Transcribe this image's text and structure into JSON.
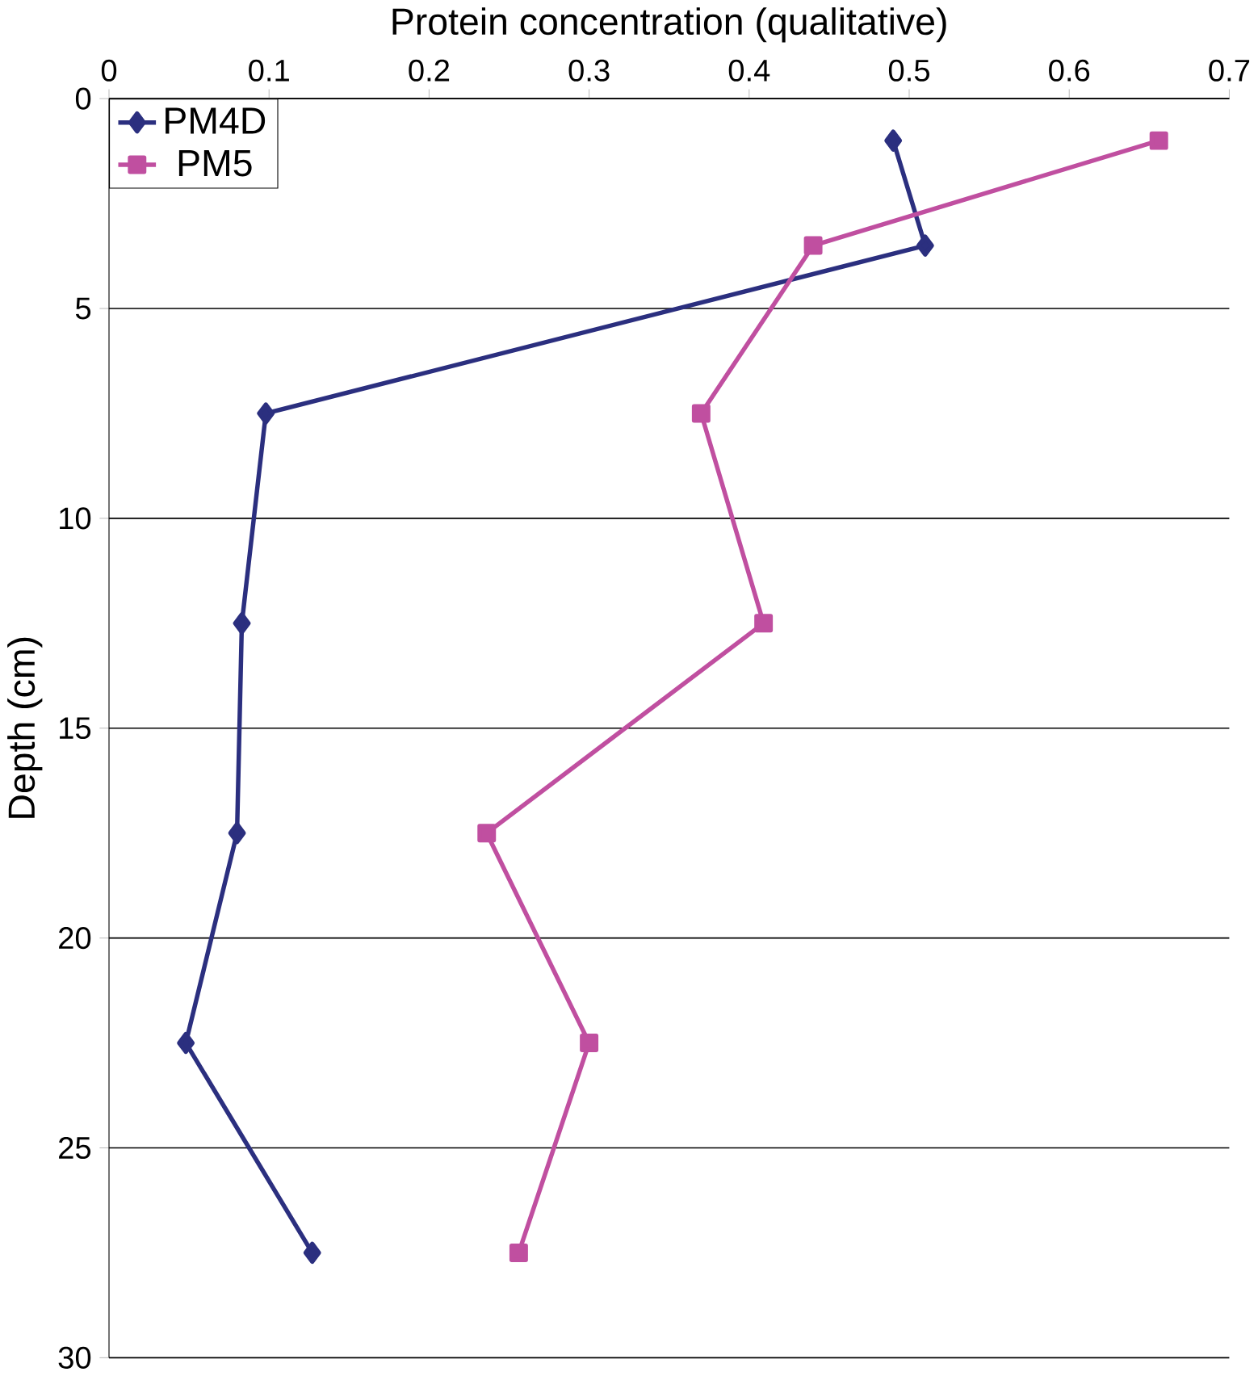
{
  "chart_data": {
    "type": "line",
    "xlabel": "Protein concentration (qualitative)",
    "ylabel": "Depth (cm)",
    "xlim": [
      0,
      0.7
    ],
    "xticks": [
      0,
      0.1,
      0.2,
      0.3,
      0.4,
      0.5,
      0.6,
      0.7
    ],
    "ylim": [
      30,
      0
    ],
    "yticks": [
      0,
      5,
      10,
      15,
      20,
      25,
      30
    ],
    "grid": "y",
    "legend": "top left",
    "line_style": "solid",
    "series": [
      {
        "name": "PM4D",
        "color": "#2b2f7f",
        "marker": "diamond",
        "x": [
          0.49,
          0.51,
          0.098,
          0.083,
          0.08,
          0.048,
          0.127
        ],
        "values": [
          1,
          3.5,
          7.5,
          12.5,
          17.5,
          22.5,
          27.5
        ]
      },
      {
        "name": "PM5",
        "color": "#c04fa0",
        "marker": "square",
        "x": [
          0.656,
          0.44,
          0.37,
          0.409,
          0.236,
          0.3,
          0.256
        ],
        "values": [
          1,
          3.5,
          7.5,
          12.5,
          17.5,
          22.5,
          27.5
        ]
      }
    ]
  }
}
